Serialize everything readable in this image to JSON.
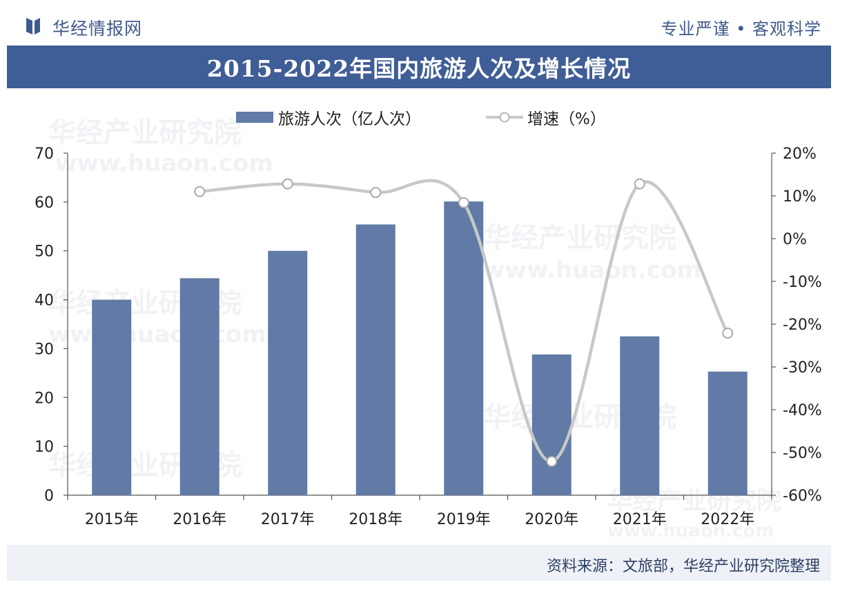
{
  "header": {
    "brand": "华经情报网",
    "slogan": "专业严谨 • 客观科学"
  },
  "title": "2015-2022年国内旅游人次及增长情况",
  "source": "资料来源：文旅部，华经产业研究院整理",
  "watermark": {
    "name": "华经产业研究院",
    "url": "www.huaon.com"
  },
  "colors": {
    "bar": "#617ba6",
    "line": "#c8c8c8",
    "title_bg": "#3f5d96",
    "brand": "#3f5a8c"
  },
  "chart_data": {
    "type": "bar+line",
    "title": "2015-2022年国内旅游人次及增长情况",
    "categories": [
      "2015年",
      "2016年",
      "2017年",
      "2018年",
      "2019年",
      "2020年",
      "2021年",
      "2022年"
    ],
    "series": [
      {
        "name": "旅游人次（亿人次）",
        "type": "bar",
        "axis": "left",
        "values": [
          40.0,
          44.4,
          50.0,
          55.4,
          60.1,
          28.8,
          32.5,
          25.3
        ]
      },
      {
        "name": "增速（%）",
        "type": "line",
        "axis": "right",
        "values": [
          null,
          11.0,
          12.8,
          10.8,
          8.4,
          -52.1,
          12.8,
          -22.1
        ]
      }
    ],
    "y_left": {
      "min": 0,
      "max": 70,
      "ticks": [
        "0",
        "10",
        "20",
        "30",
        "40",
        "50",
        "60",
        "70"
      ]
    },
    "y_right": {
      "min": -60,
      "max": 20,
      "ticks": [
        "-60%",
        "-50%",
        "-40%",
        "-30%",
        "-20%",
        "-10%",
        "0%",
        "10%",
        "20%"
      ]
    },
    "legend_position": "top-center",
    "grid": false
  }
}
